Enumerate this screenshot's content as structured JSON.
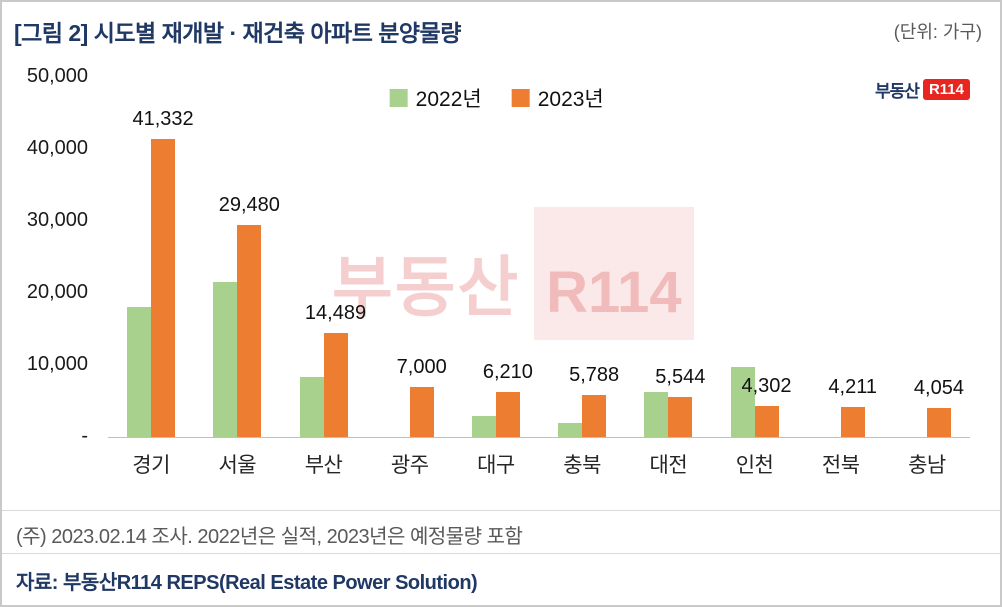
{
  "header": {
    "title": "[그림 2] 시도별 재개발 · 재건축 아파트 분양물량",
    "unit": "(단위: 가구)"
  },
  "logo": {
    "brand": "부동산",
    "mark": "R114"
  },
  "watermark": {
    "brand": "부동산",
    "mark": "R114"
  },
  "chart_data": {
    "type": "bar",
    "title": "[그림 2] 시도별 재개발 · 재건축 아파트 분양물량",
    "categories": [
      "경기",
      "서울",
      "부산",
      "광주",
      "대구",
      "충북",
      "대전",
      "인천",
      "전북",
      "충남"
    ],
    "series": [
      {
        "name": "2022년",
        "color": "#a9d18e",
        "values": [
          18000,
          21500,
          8400,
          0,
          2900,
          2000,
          6300,
          9700,
          0,
          0
        ]
      },
      {
        "name": "2023년",
        "color": "#ed7d31",
        "values": [
          41332,
          29480,
          14489,
          7000,
          6210,
          5788,
          5544,
          4302,
          4211,
          4054
        ]
      }
    ],
    "data_labels": [
      "41,332",
      "29,480",
      "14,489",
      "7,000",
      "6,210",
      "5,788",
      "5,544",
      "4,302",
      "4,211",
      "4,054"
    ],
    "ylabel": "",
    "xlabel": "",
    "ylim": [
      0,
      50000
    ],
    "ytick_values": [
      50000,
      40000,
      30000,
      20000,
      10000,
      0
    ],
    "ytick_labels": [
      "50,000",
      "40,000",
      "30,000",
      "20,000",
      "10,000",
      "-"
    ],
    "grid": false,
    "legend_position": "top-center"
  },
  "footer": {
    "note": "(주) 2023.02.14 조사. 2022년은 실적, 2023년은 예정물량 포함",
    "source": "자료: 부동산R114 REPS(Real Estate Power Solution)"
  }
}
